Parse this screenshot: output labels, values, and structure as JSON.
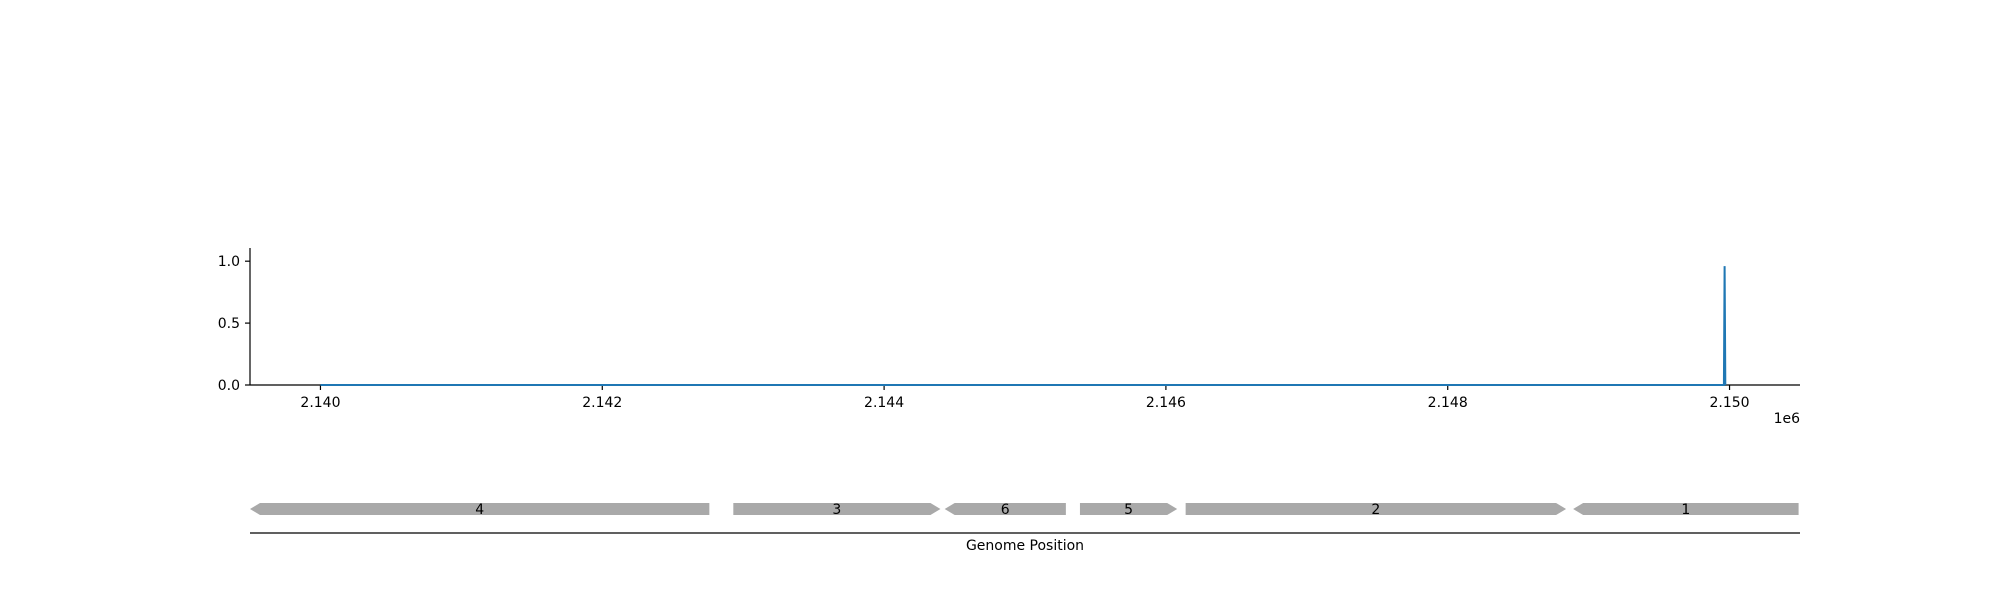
{
  "chart_data": [
    {
      "type": "line",
      "title": "",
      "xlabel": "",
      "ylabel": "",
      "x_offset_label": "1e6",
      "xlim": [
        2139500,
        2150500
      ],
      "ylim": [
        0,
        1.05
      ],
      "x_ticks": [
        {
          "value": 2140000,
          "label": "2.140"
        },
        {
          "value": 2142000,
          "label": "2.142"
        },
        {
          "value": 2144000,
          "label": "2.144"
        },
        {
          "value": 2146000,
          "label": "2.146"
        },
        {
          "value": 2148000,
          "label": "2.148"
        },
        {
          "value": 2150000,
          "label": "2.150"
        }
      ],
      "y_ticks": [
        {
          "value": 0.0,
          "label": "0.0"
        },
        {
          "value": 0.5,
          "label": "0.5"
        },
        {
          "value": 1.0,
          "label": "1.0"
        }
      ],
      "grid": false,
      "series": [
        {
          "color": "#1f77b4",
          "points": [
            [
              2140000,
              0
            ],
            [
              2149960,
              0
            ],
            [
              2149965,
              0.96
            ],
            [
              2149970,
              0
            ]
          ]
        }
      ]
    },
    {
      "type": "gene_track",
      "xlabel": "Genome Position",
      "xlim": [
        2139500,
        2150500
      ],
      "gene_color": "#a9a9a9",
      "genes": [
        {
          "label": "4",
          "start": 2139500,
          "end": 2142760,
          "strand": "-"
        },
        {
          "label": "3",
          "start": 2142930,
          "end": 2144400,
          "strand": "+"
        },
        {
          "label": "6",
          "start": 2144430,
          "end": 2145290,
          "strand": "-"
        },
        {
          "label": "5",
          "start": 2145390,
          "end": 2146080,
          "strand": "+"
        },
        {
          "label": "2",
          "start": 2146140,
          "end": 2148840,
          "strand": "+"
        },
        {
          "label": "1",
          "start": 2148890,
          "end": 2150490,
          "strand": "-"
        }
      ]
    }
  ]
}
